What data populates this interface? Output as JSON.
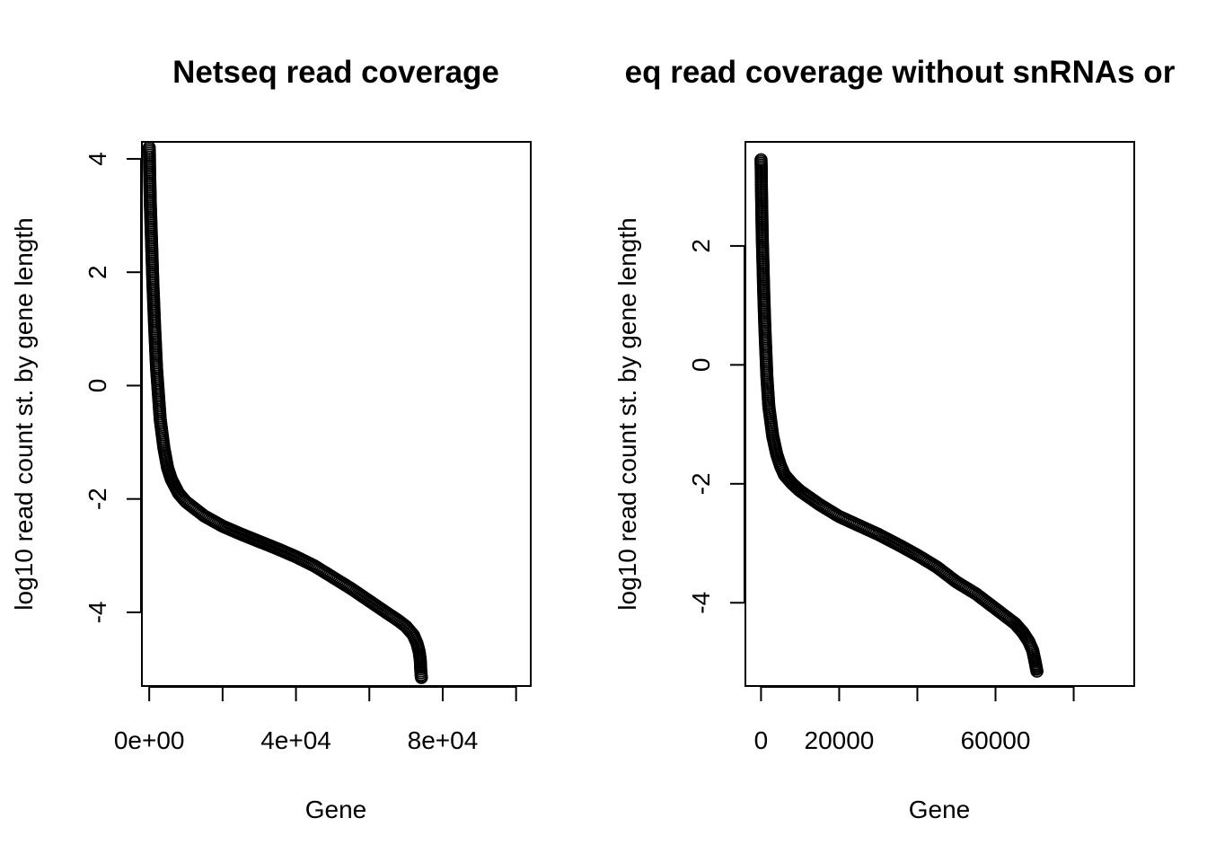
{
  "chart_data": [
    {
      "type": "scatter",
      "title": "Netseq read coverage",
      "xlabel": "Gene",
      "ylabel": "log10 read count st. by gene length",
      "xlim": [
        -2000,
        104000
      ],
      "ylim": [
        -5.3,
        4.3
      ],
      "xticks": [
        0,
        20000,
        40000,
        60000,
        80000,
        100000
      ],
      "xtick_labels": [
        {
          "value": 0,
          "label": "0e+00"
        },
        {
          "value": 40000,
          "label": "4e+04"
        },
        {
          "value": 80000,
          "label": "8e+04"
        }
      ],
      "yticks": [
        -4,
        -2,
        0,
        2,
        4
      ],
      "ytick_labels": [
        "-4",
        "-2",
        "0",
        "2",
        "4"
      ],
      "grid": false,
      "marker": "open circle",
      "x": [
        0,
        50,
        100,
        200,
        300,
        500,
        700,
        1000,
        1500,
        2000,
        3000,
        4000,
        5000,
        6000,
        8000,
        10000,
        15000,
        20000,
        25000,
        30000,
        35000,
        40000,
        45000,
        50000,
        55000,
        60000,
        65000,
        68000,
        70000,
        72000,
        73000,
        73600,
        73900,
        74000,
        74100,
        74200
      ],
      "y": [
        4.2,
        4.1,
        3.8,
        3.5,
        3.2,
        2.8,
        2.4,
        1.8,
        1.0,
        0.3,
        -0.6,
        -1.1,
        -1.45,
        -1.65,
        -1.9,
        -2.05,
        -2.3,
        -2.48,
        -2.62,
        -2.75,
        -2.88,
        -3.02,
        -3.18,
        -3.38,
        -3.58,
        -3.8,
        -4.02,
        -4.15,
        -4.25,
        -4.4,
        -4.55,
        -4.7,
        -4.85,
        -5.0,
        -5.1,
        -5.15
      ]
    },
    {
      "type": "scatter",
      "title": "eq read coverage without snRNAs or",
      "xlabel": "Gene",
      "ylabel": "log10 read count st. by gene length",
      "xlim": [
        -4000,
        95500
      ],
      "ylim": [
        -5.4,
        3.75
      ],
      "xticks": [
        0,
        20000,
        40000,
        60000,
        80000
      ],
      "xtick_labels": [
        {
          "value": 0,
          "label": "0"
        },
        {
          "value": 20000,
          "label": "20000"
        },
        {
          "value": 60000,
          "label": "60000"
        }
      ],
      "yticks": [
        -4,
        -2,
        0,
        2
      ],
      "ytick_labels": [
        "-4",
        "-2",
        "0",
        "2"
      ],
      "grid": false,
      "marker": "open circle",
      "x": [
        0,
        50,
        100,
        200,
        300,
        500,
        700,
        1000,
        1500,
        2000,
        3000,
        4000,
        5000,
        6000,
        8000,
        10000,
        15000,
        20000,
        25000,
        30000,
        35000,
        40000,
        45000,
        50000,
        55000,
        60000,
        65000,
        67000,
        68500,
        69500,
        70000,
        70300,
        70500,
        70600
      ],
      "y": [
        3.45,
        3.3,
        3.0,
        2.6,
        2.2,
        1.7,
        1.2,
        0.6,
        -0.2,
        -0.7,
        -1.2,
        -1.5,
        -1.7,
        -1.85,
        -2.0,
        -2.12,
        -2.35,
        -2.55,
        -2.7,
        -2.85,
        -3.02,
        -3.2,
        -3.4,
        -3.65,
        -3.85,
        -4.1,
        -4.35,
        -4.5,
        -4.65,
        -4.8,
        -4.95,
        -5.05,
        -5.12,
        -5.15
      ]
    }
  ]
}
